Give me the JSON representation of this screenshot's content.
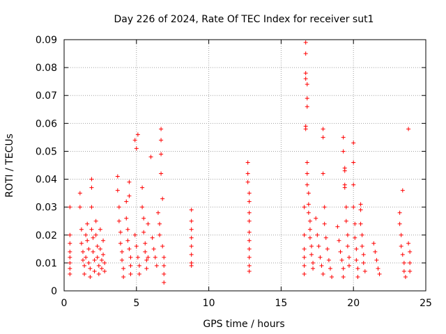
{
  "chart_data": {
    "type": "scatter",
    "title": "Day 226 of 2024, Rate Of TEC Index for receiver sut1",
    "xlabel": "GPS time / hours",
    "ylabel": "ROTI / TECUs",
    "xlim": [
      0,
      25
    ],
    "ylim": [
      0,
      0.09
    ],
    "xticks": [
      0,
      5,
      10,
      15,
      20,
      25
    ],
    "yticks": [
      0,
      0.01,
      0.02,
      0.03,
      0.04,
      0.05,
      0.06,
      0.07,
      0.08,
      0.09
    ],
    "xtick_labels": [
      "0",
      "5",
      "10",
      "15",
      "20",
      "25"
    ],
    "ytick_labels": [
      "0",
      "0.01",
      "0.02",
      "0.03",
      "0.04",
      "0.05",
      "0.06",
      "0.07",
      "0.08",
      "0.09"
    ],
    "grid": true,
    "marker": "+",
    "color": "#ff0000",
    "series": [
      {
        "points": [
          [
            0.4,
            0.03
          ],
          [
            0.4,
            0.02
          ],
          [
            0.4,
            0.017
          ],
          [
            0.4,
            0.014
          ],
          [
            0.4,
            0.012
          ],
          [
            0.4,
            0.01
          ],
          [
            0.4,
            0.008
          ],
          [
            0.4,
            0.006
          ],
          [
            1.1,
            0.035
          ],
          [
            1.1,
            0.03
          ],
          [
            1.2,
            0.022
          ],
          [
            1.2,
            0.017
          ],
          [
            1.3,
            0.014
          ],
          [
            1.3,
            0.011
          ],
          [
            1.4,
            0.009
          ],
          [
            1.4,
            0.006
          ],
          [
            1.5,
            0.02
          ],
          [
            1.5,
            0.012
          ],
          [
            1.6,
            0.024
          ],
          [
            1.6,
            0.018
          ],
          [
            1.7,
            0.015
          ],
          [
            1.7,
            0.01
          ],
          [
            1.8,
            0.008
          ],
          [
            1.8,
            0.005
          ],
          [
            1.9,
            0.04
          ],
          [
            1.9,
            0.037
          ],
          [
            1.9,
            0.03
          ],
          [
            1.9,
            0.022
          ],
          [
            2.0,
            0.019
          ],
          [
            2.0,
            0.014
          ],
          [
            2.1,
            0.011
          ],
          [
            2.1,
            0.007
          ],
          [
            2.2,
            0.025
          ],
          [
            2.2,
            0.02
          ],
          [
            2.3,
            0.016
          ],
          [
            2.3,
            0.012
          ],
          [
            2.4,
            0.009
          ],
          [
            2.4,
            0.006
          ],
          [
            2.5,
            0.022
          ],
          [
            2.5,
            0.015
          ],
          [
            2.6,
            0.011
          ],
          [
            2.6,
            0.008
          ],
          [
            2.7,
            0.018
          ],
          [
            2.7,
            0.013
          ],
          [
            2.8,
            0.01
          ],
          [
            2.8,
            0.007
          ],
          [
            3.7,
            0.041
          ],
          [
            3.7,
            0.036
          ],
          [
            3.8,
            0.03
          ],
          [
            3.8,
            0.025
          ],
          [
            3.9,
            0.021
          ],
          [
            3.9,
            0.017
          ],
          [
            4.0,
            0.014
          ],
          [
            4.0,
            0.011
          ],
          [
            4.1,
            0.008
          ],
          [
            4.1,
            0.005
          ],
          [
            4.3,
            0.032
          ],
          [
            4.3,
            0.026
          ],
          [
            4.4,
            0.022
          ],
          [
            4.4,
            0.018
          ],
          [
            4.5,
            0.039
          ],
          [
            4.5,
            0.034
          ],
          [
            4.5,
            0.015
          ],
          [
            4.6,
            0.012
          ],
          [
            4.6,
            0.009
          ],
          [
            4.6,
            0.006
          ],
          [
            4.9,
            0.054
          ],
          [
            4.9,
            0.02
          ],
          [
            5.0,
            0.051
          ],
          [
            5.0,
            0.016
          ],
          [
            5.1,
            0.056
          ],
          [
            5.1,
            0.012
          ],
          [
            5.2,
            0.009
          ],
          [
            5.2,
            0.006
          ],
          [
            5.4,
            0.037
          ],
          [
            5.4,
            0.03
          ],
          [
            5.5,
            0.026
          ],
          [
            5.5,
            0.021
          ],
          [
            5.6,
            0.017
          ],
          [
            5.6,
            0.014
          ],
          [
            5.7,
            0.011
          ],
          [
            5.7,
            0.008
          ],
          [
            5.8,
            0.024
          ],
          [
            5.8,
            0.012
          ],
          [
            6.0,
            0.048
          ],
          [
            6.1,
            0.019
          ],
          [
            6.2,
            0.015
          ],
          [
            6.3,
            0.012
          ],
          [
            6.4,
            0.009
          ],
          [
            6.5,
            0.028
          ],
          [
            6.6,
            0.024
          ],
          [
            6.6,
            0.02
          ],
          [
            6.7,
            0.058
          ],
          [
            6.7,
            0.054
          ],
          [
            6.7,
            0.049
          ],
          [
            6.7,
            0.042
          ],
          [
            6.8,
            0.033
          ],
          [
            6.8,
            0.016
          ],
          [
            6.9,
            0.012
          ],
          [
            6.9,
            0.009
          ],
          [
            6.9,
            0.006
          ],
          [
            6.9,
            0.003
          ],
          [
            8.8,
            0.029
          ],
          [
            8.8,
            0.025
          ],
          [
            8.8,
            0.022
          ],
          [
            8.8,
            0.019
          ],
          [
            8.8,
            0.016
          ],
          [
            8.8,
            0.013
          ],
          [
            8.8,
            0.01
          ],
          [
            8.8,
            0.009
          ],
          [
            12.7,
            0.046
          ],
          [
            12.7,
            0.042
          ],
          [
            12.7,
            0.039
          ],
          [
            12.8,
            0.035
          ],
          [
            12.8,
            0.032
          ],
          [
            12.8,
            0.028
          ],
          [
            12.8,
            0.025
          ],
          [
            12.8,
            0.021
          ],
          [
            12.8,
            0.018
          ],
          [
            12.8,
            0.015
          ],
          [
            12.8,
            0.012
          ],
          [
            12.8,
            0.009
          ],
          [
            12.8,
            0.007
          ],
          [
            16.6,
            0.03
          ],
          [
            16.6,
            0.02
          ],
          [
            16.6,
            0.015
          ],
          [
            16.6,
            0.012
          ],
          [
            16.6,
            0.009
          ],
          [
            16.6,
            0.006
          ],
          [
            16.7,
            0.089
          ],
          [
            16.7,
            0.085
          ],
          [
            16.7,
            0.078
          ],
          [
            16.7,
            0.076
          ],
          [
            16.8,
            0.074
          ],
          [
            16.8,
            0.069
          ],
          [
            16.8,
            0.066
          ],
          [
            16.7,
            0.059
          ],
          [
            16.7,
            0.058
          ],
          [
            16.8,
            0.046
          ],
          [
            16.8,
            0.042
          ],
          [
            16.8,
            0.038
          ],
          [
            16.9,
            0.035
          ],
          [
            16.9,
            0.031
          ],
          [
            16.9,
            0.028
          ],
          [
            17.0,
            0.025
          ],
          [
            17.0,
            0.022
          ],
          [
            17.0,
            0.019
          ],
          [
            17.1,
            0.016
          ],
          [
            17.1,
            0.013
          ],
          [
            17.2,
            0.01
          ],
          [
            17.2,
            0.008
          ],
          [
            17.4,
            0.026
          ],
          [
            17.5,
            0.02
          ],
          [
            17.6,
            0.016
          ],
          [
            17.7,
            0.012
          ],
          [
            17.8,
            0.009
          ],
          [
            17.9,
            0.006
          ],
          [
            17.9,
            0.058
          ],
          [
            17.9,
            0.055
          ],
          [
            17.9,
            0.042
          ],
          [
            18.0,
            0.03
          ],
          [
            18.0,
            0.024
          ],
          [
            18.1,
            0.019
          ],
          [
            18.2,
            0.015
          ],
          [
            18.3,
            0.011
          ],
          [
            18.4,
            0.008
          ],
          [
            18.5,
            0.005
          ],
          [
            18.9,
            0.023
          ],
          [
            19.0,
            0.018
          ],
          [
            19.1,
            0.014
          ],
          [
            19.2,
            0.011
          ],
          [
            19.3,
            0.008
          ],
          [
            19.3,
            0.005
          ],
          [
            19.3,
            0.055
          ],
          [
            19.3,
            0.05
          ],
          [
            19.4,
            0.044
          ],
          [
            19.4,
            0.043
          ],
          [
            19.4,
            0.038
          ],
          [
            19.4,
            0.037
          ],
          [
            19.5,
            0.03
          ],
          [
            19.5,
            0.025
          ],
          [
            19.6,
            0.02
          ],
          [
            19.6,
            0.016
          ],
          [
            19.7,
            0.012
          ],
          [
            19.7,
            0.009
          ],
          [
            20.0,
            0.053
          ],
          [
            20.0,
            0.046
          ],
          [
            20.0,
            0.038
          ],
          [
            20.0,
            0.03
          ],
          [
            20.1,
            0.024
          ],
          [
            20.1,
            0.019
          ],
          [
            20.2,
            0.015
          ],
          [
            20.2,
            0.011
          ],
          [
            20.3,
            0.008
          ],
          [
            20.3,
            0.005
          ],
          [
            20.5,
            0.031
          ],
          [
            20.5,
            0.029
          ],
          [
            20.5,
            0.024
          ],
          [
            20.6,
            0.02
          ],
          [
            20.6,
            0.016
          ],
          [
            20.7,
            0.013
          ],
          [
            20.7,
            0.01
          ],
          [
            20.8,
            0.007
          ],
          [
            21.4,
            0.017
          ],
          [
            21.5,
            0.014
          ],
          [
            21.6,
            0.011
          ],
          [
            21.7,
            0.008
          ],
          [
            21.8,
            0.006
          ],
          [
            23.2,
            0.028
          ],
          [
            23.2,
            0.024
          ],
          [
            23.3,
            0.02
          ],
          [
            23.3,
            0.016
          ],
          [
            23.4,
            0.036
          ],
          [
            23.4,
            0.013
          ],
          [
            23.5,
            0.01
          ],
          [
            23.5,
            0.007
          ],
          [
            23.6,
            0.005
          ],
          [
            23.8,
            0.058
          ],
          [
            23.8,
            0.017
          ],
          [
            23.9,
            0.014
          ],
          [
            23.9,
            0.01
          ],
          [
            23.9,
            0.007
          ]
        ]
      }
    ]
  }
}
